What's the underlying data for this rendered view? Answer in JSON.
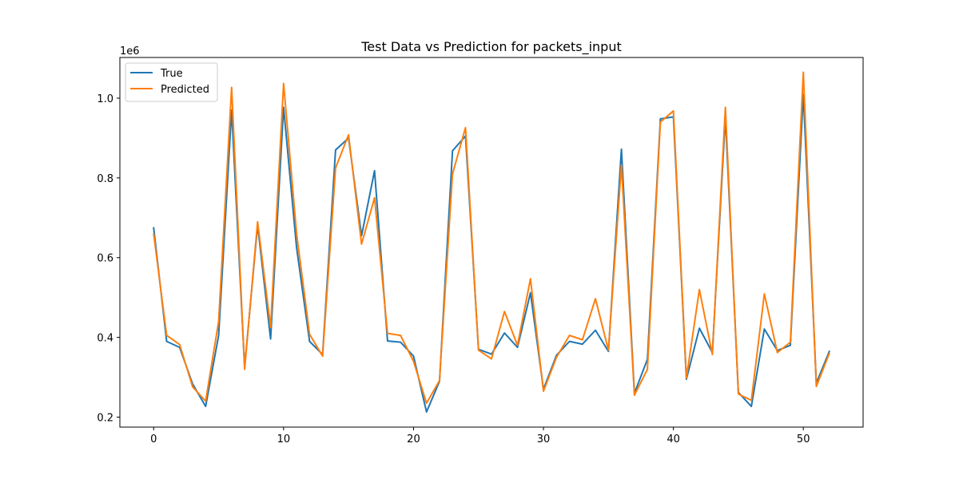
{
  "chart_data": {
    "type": "line",
    "title": "Test Data vs Prediction for packets_input",
    "xlabel": "",
    "ylabel": "",
    "y_offset_label": "1e6",
    "y_scale": 1000000,
    "xlim": [
      -2.6,
      54.6
    ],
    "ylim": [
      0.175,
      1.102
    ],
    "x_ticks": [
      0,
      10,
      20,
      30,
      40,
      50
    ],
    "y_ticks": [
      0.2,
      0.4,
      0.6,
      0.8,
      1.0
    ],
    "y_tick_labels": [
      "0.2",
      "0.4",
      "0.6",
      "0.8",
      "1.0"
    ],
    "grid": false,
    "legend_position": "top-left",
    "x": [
      0,
      1,
      2,
      3,
      4,
      5,
      6,
      7,
      8,
      9,
      10,
      11,
      12,
      13,
      14,
      15,
      16,
      17,
      18,
      19,
      20,
      21,
      22,
      23,
      24,
      25,
      26,
      27,
      28,
      29,
      30,
      31,
      32,
      33,
      34,
      35,
      36,
      37,
      38,
      39,
      40,
      41,
      42,
      43,
      44,
      45,
      46,
      47,
      48,
      49,
      50,
      51,
      52
    ],
    "series": [
      {
        "name": "True",
        "color": "#1f77b4",
        "values": [
          0.675,
          0.39,
          0.375,
          0.283,
          0.227,
          0.405,
          0.97,
          0.325,
          0.682,
          0.396,
          0.977,
          0.625,
          0.39,
          0.357,
          0.87,
          0.9,
          0.655,
          0.818,
          0.391,
          0.388,
          0.353,
          0.213,
          0.29,
          0.868,
          0.905,
          0.37,
          0.358,
          0.411,
          0.375,
          0.512,
          0.27,
          0.355,
          0.39,
          0.383,
          0.418,
          0.365,
          0.872,
          0.26,
          0.345,
          0.948,
          0.953,
          0.295,
          0.423,
          0.362,
          0.953,
          0.262,
          0.227,
          0.421,
          0.367,
          0.38,
          1.01,
          0.285,
          0.365
        ]
      },
      {
        "name": "Predicted",
        "color": "#ff7f0e",
        "values": [
          0.66,
          0.405,
          0.382,
          0.276,
          0.24,
          0.44,
          1.027,
          0.32,
          0.69,
          0.425,
          1.037,
          0.66,
          0.408,
          0.353,
          0.825,
          0.908,
          0.634,
          0.75,
          0.41,
          0.405,
          0.34,
          0.235,
          0.292,
          0.81,
          0.926,
          0.368,
          0.346,
          0.465,
          0.38,
          0.547,
          0.265,
          0.35,
          0.405,
          0.394,
          0.497,
          0.368,
          0.832,
          0.255,
          0.32,
          0.94,
          0.968,
          0.298,
          0.52,
          0.357,
          0.977,
          0.258,
          0.242,
          0.509,
          0.362,
          0.388,
          1.065,
          0.277,
          0.36
        ]
      }
    ]
  }
}
